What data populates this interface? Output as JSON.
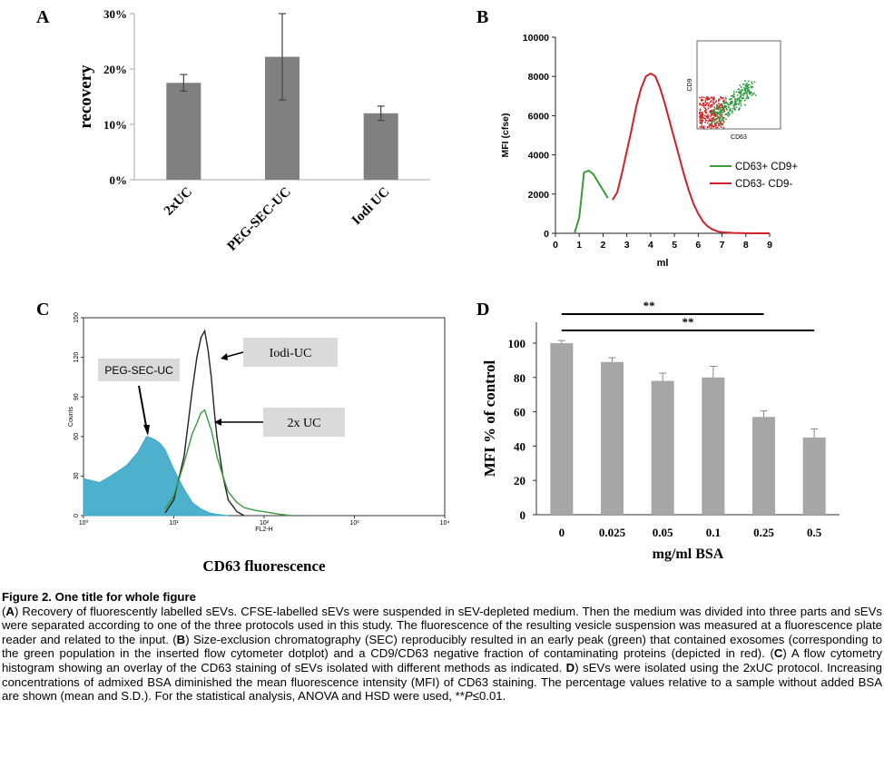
{
  "panel_letters": {
    "a": "A",
    "b": "B",
    "c": "C",
    "d": "D"
  },
  "chart_data": [
    {
      "panel": "A",
      "type": "bar",
      "categories": [
        "2xUC",
        "PEG-SEC-UC",
        "Iodi UC"
      ],
      "values": [
        17.5,
        22.2,
        12.0
      ],
      "errors": [
        1.5,
        7.8,
        1.3
      ],
      "ylabel": "recovery",
      "xlabel": "",
      "ylim": [
        0,
        30
      ],
      "yticks": [
        "0%",
        "10%",
        "20%",
        "30%"
      ],
      "bar_color": "#808080",
      "grid": false
    },
    {
      "panel": "B",
      "type": "line",
      "xlabel": "ml",
      "ylabel": "MFI (cfse)",
      "xlim": [
        0,
        9
      ],
      "ylim": [
        0,
        10000
      ],
      "xticks": [
        "0",
        "1",
        "2",
        "3",
        "4",
        "5",
        "6",
        "7",
        "8",
        "9"
      ],
      "yticks": [
        "0",
        "2000",
        "4000",
        "6000",
        "8000",
        "10000"
      ],
      "series": [
        {
          "name": "CD63+ CD9+",
          "color": "#3a9a3a",
          "x": [
            0.8,
            1.0,
            1.2,
            1.4,
            1.6,
            1.8,
            2.0,
            2.2
          ],
          "y": [
            0,
            800,
            3100,
            3200,
            3000,
            2600,
            2200,
            1800
          ]
        },
        {
          "name": "CD63- CD9-",
          "color": "#d0202a",
          "x": [
            2.4,
            2.6,
            2.8,
            3.0,
            3.2,
            3.4,
            3.6,
            3.8,
            4.0,
            4.2,
            4.4,
            4.6,
            4.8,
            5.0,
            5.2,
            5.4,
            5.6,
            5.8,
            6.0,
            6.2,
            6.4,
            6.6,
            6.8,
            7.0,
            7.5,
            8.0,
            8.5,
            9.0
          ],
          "y": [
            1700,
            2100,
            3100,
            4200,
            5300,
            6500,
            7400,
            8000,
            8150,
            8000,
            7400,
            6600,
            5700,
            4800,
            3900,
            3000,
            2200,
            1500,
            1000,
            600,
            350,
            200,
            100,
            50,
            15,
            5,
            0,
            0
          ]
        }
      ],
      "legend": "right",
      "inset": {
        "xlabel": "CD63",
        "ylabel": "CD9"
      },
      "grid": false
    },
    {
      "panel": "C",
      "type": "area",
      "xlabel": "FL2-H",
      "ylabel": "Counts",
      "title": "CD63 fluorescence",
      "xscale": "log",
      "xlim": [
        1,
        10000
      ],
      "ylim": [
        0,
        150
      ],
      "xticks": [
        "10⁰",
        "10¹",
        "10²",
        "10³",
        "10⁴"
      ],
      "yticks": [
        "0",
        "30",
        "60",
        "90",
        "120",
        "150"
      ],
      "annotations": [
        "PEG-SEC-UC",
        "Iodi-UC",
        "2x UC"
      ],
      "series": [
        {
          "name": "PEG-SEC-UC",
          "color": "#3aa8c8",
          "x": [
            1,
            1.5,
            2,
            3,
            4,
            5,
            6,
            7,
            8,
            10,
            13,
            16,
            20,
            25,
            30,
            40
          ],
          "y": [
            28,
            25,
            30,
            38,
            48,
            60,
            58,
            55,
            50,
            35,
            20,
            10,
            5,
            2,
            1,
            0
          ]
        },
        {
          "name": "Iodi-UC",
          "color": "#222222",
          "x": [
            8,
            10,
            13,
            16,
            18,
            20,
            22,
            24,
            26,
            28,
            30,
            35,
            40,
            50,
            60
          ],
          "y": [
            2,
            12,
            45,
            95,
            120,
            135,
            140,
            125,
            105,
            80,
            60,
            30,
            12,
            3,
            0
          ]
        },
        {
          "name": "2x UC",
          "color": "#3a9a3a",
          "x": [
            8,
            10,
            13,
            16,
            18,
            20,
            22,
            24,
            26,
            28,
            30,
            35,
            40,
            50,
            60,
            80,
            100,
            150,
            200
          ],
          "y": [
            5,
            15,
            40,
            62,
            70,
            78,
            80,
            72,
            65,
            55,
            45,
            30,
            18,
            10,
            6,
            4,
            3,
            1,
            0
          ]
        }
      ]
    },
    {
      "panel": "D",
      "type": "bar",
      "categories": [
        "0",
        "0.025",
        "0.05",
        "0.1",
        "0.25",
        "0.5"
      ],
      "values": [
        100,
        89,
        78,
        80,
        57,
        45
      ],
      "errors": [
        1.5,
        2.5,
        4.5,
        6.5,
        3.5,
        5
      ],
      "xlabel": "mg/ml BSA",
      "ylabel": "MFI % of control",
      "ylim": [
        0,
        120
      ],
      "yticks": [
        "0",
        "20",
        "40",
        "60",
        "80",
        "100"
      ],
      "bar_color": "#a6a6a6",
      "significance": [
        "**",
        "**"
      ],
      "grid": false
    }
  ],
  "caption": {
    "title": "Figure 2. One title for whole figure",
    "lines": [
      {
        "segments": [
          [
            "(",
            ""
          ],
          [
            "A",
            "b"
          ],
          [
            ") Recovery of fluorescently labelled sEVs. CFSE-labelled sEVs were suspended in sEV-depleted medium. Then the medium was divided into three parts and sEVs were separated according to one of the three protocols used in this study. The fluorescence of the resulting vesicle suspension was measured at a fluorescence plate reader and related to the input. (",
            ""
          ],
          [
            "B",
            "b"
          ],
          [
            ") Size-exclusion chromatography (SEC) reproducibly resulted in an early peak (green) that contained exosomes (corresponding to the green population in the inserted flow cytometer dotplot) and a CD9/CD63 negative fraction of contaminating proteins (depicted in red). (",
            ""
          ],
          [
            "C",
            "b"
          ],
          [
            ") A flow cytometry histogram showing an overlay of the CD63 staining of sEVs isolated with different methods as indicated. ",
            ""
          ],
          [
            "D",
            "b"
          ],
          [
            ") sEVs were isolated using the 2xUC protocol. Increasing concentrations of admixed BSA diminished the mean fluorescence intensity (MFI) of CD63 staining. The percentage values relative to a sample without added BSA are shown (mean and S.D.). For the statistical analysis, ANOVA and HSD were used, **",
            ""
          ],
          [
            "P",
            "i"
          ],
          [
            "≤0.01.",
            ""
          ]
        ]
      }
    ]
  }
}
